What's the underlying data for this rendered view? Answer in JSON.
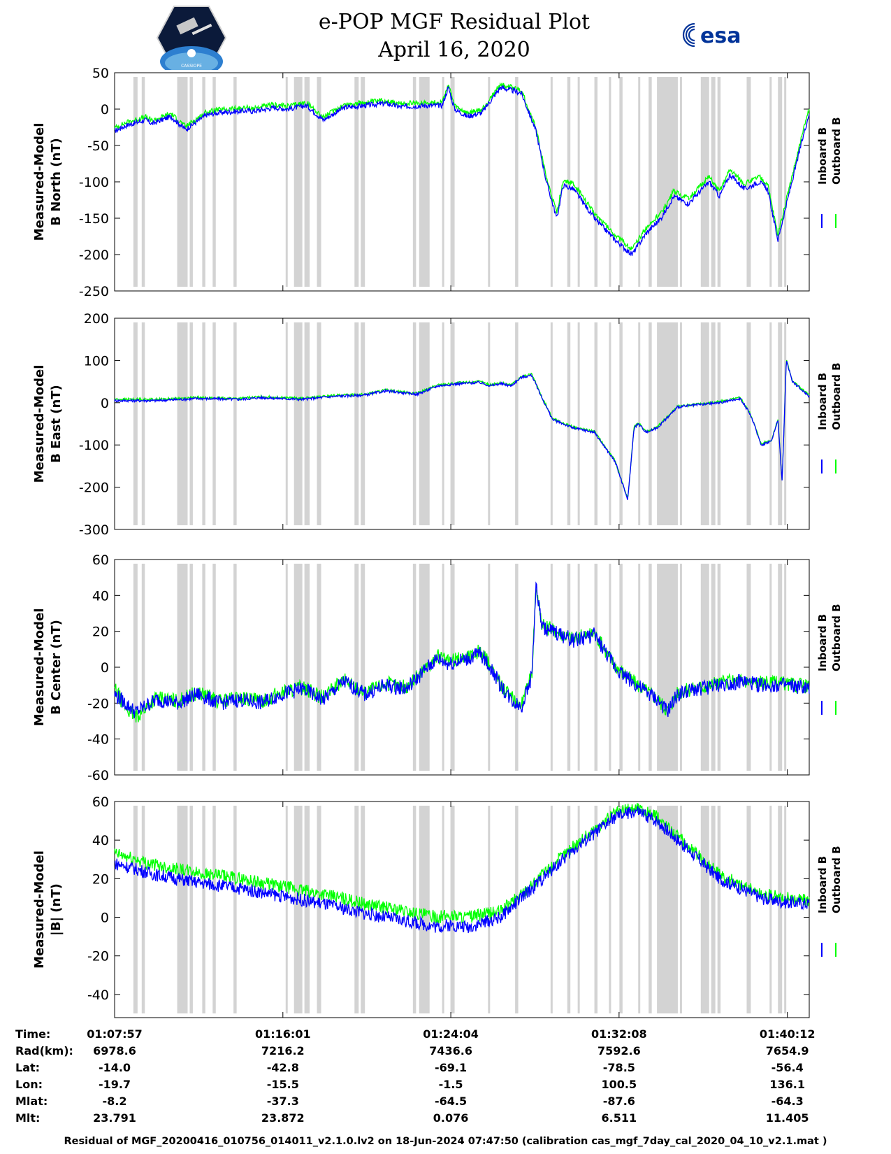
{
  "header": {
    "title_line1": "e-POP MGF Residual Plot",
    "title_line2": "April 16, 2020",
    "logo_left": "CASSIOPE",
    "logo_right": "esa"
  },
  "legend": {
    "inboard": "Inboard B",
    "outboard": "Outboard B",
    "inboard_color": "#0000ff",
    "outboard_color": "#00ff00"
  },
  "colors": {
    "gap_band": "#d3d3d3",
    "inboard": "#0000ff",
    "outboard": "#00ff00"
  },
  "chart_data": [
    {
      "type": "line",
      "ylabel_line1": "Measured-Model",
      "ylabel_line2": "B North (nT)",
      "ylim": [
        -250,
        50
      ],
      "yticks": [
        "50",
        "0",
        "-50",
        "-100",
        "-150",
        "-200",
        "-250"
      ],
      "x": [
        0,
        0.6,
        1.5,
        1.8,
        2.7,
        3.4,
        4.4,
        5.0,
        6.4,
        6.6,
        7.7,
        8.3,
        9.2,
        10.0,
        11.0,
        12.0,
        13.0,
        13.7,
        14.9,
        15.7,
        16.0,
        16.3,
        16.9,
        17.6,
        18.5,
        19.5,
        20.2,
        20.7,
        21.2,
        21.5,
        22.0,
        23.0,
        24.0,
        24.8,
        25.5,
        26.2,
        26.8,
        27.5,
        28.5,
        29.0,
        29.5,
        30.2,
        30.9,
        31.3,
        31.8,
        32.3,
        32.9,
        33.3
      ],
      "series": [
        {
          "name": "Inboard B",
          "values": [
            -30,
            -22,
            -15,
            -20,
            -10,
            -28,
            -8,
            -5,
            -2,
            -3,
            2,
            0,
            5,
            -15,
            2,
            5,
            8,
            3,
            5,
            5,
            30,
            0,
            -10,
            -5,
            30,
            22,
            -30,
            -100,
            -150,
            -105,
            -110,
            -150,
            -180,
            -200,
            -170,
            -150,
            -120,
            -130,
            -100,
            -120,
            -90,
            -110,
            -100,
            -110,
            -180,
            -120,
            -50,
            -5
          ]
        },
        {
          "name": "Outboard B",
          "values": [
            -26,
            -18,
            -11,
            -16,
            -6,
            -24,
            -4,
            -1,
            2,
            1,
            6,
            4,
            9,
            -11,
            6,
            9,
            12,
            7,
            9,
            9,
            34,
            4,
            -6,
            -1,
            34,
            26,
            -26,
            -95,
            -143,
            -98,
            -103,
            -143,
            -173,
            -193,
            -163,
            -143,
            -113,
            -123,
            -93,
            -113,
            -83,
            -103,
            -93,
            -103,
            -173,
            -113,
            -43,
            2
          ]
        }
      ]
    },
    {
      "type": "line",
      "ylabel_line1": "Measured-Model",
      "ylabel_line2": "B East (nT)",
      "ylim": [
        -300,
        200
      ],
      "yticks": [
        "200",
        "100",
        "0",
        "-100",
        "-200",
        "-300"
      ],
      "x": [
        0,
        2.0,
        4.0,
        6.0,
        7.0,
        9.0,
        10.5,
        12.0,
        13.0,
        14.5,
        15.5,
        16.5,
        17.5,
        18.0,
        18.5,
        19.0,
        19.5,
        20.0,
        20.5,
        21.0,
        21.5,
        22.0,
        23.0,
        24.0,
        24.6,
        24.9,
        25.1,
        25.5,
        26.0,
        27.0,
        28.0,
        29.0,
        30.0,
        30.5,
        31.0,
        31.5,
        31.8,
        32.0,
        32.2,
        32.5,
        33.3
      ],
      "series": [
        {
          "name": "Inboard B",
          "values": [
            5,
            5,
            10,
            8,
            12,
            8,
            15,
            18,
            28,
            20,
            40,
            45,
            48,
            40,
            45,
            40,
            60,
            65,
            10,
            -40,
            -50,
            -60,
            -70,
            -140,
            -230,
            -60,
            -50,
            -70,
            -60,
            -10,
            -5,
            0,
            10,
            -30,
            -100,
            -90,
            -40,
            -190,
            100,
            50,
            15
          ]
        },
        {
          "name": "Outboard B",
          "values": [
            8,
            8,
            12,
            10,
            14,
            10,
            17,
            20,
            30,
            22,
            42,
            47,
            50,
            42,
            47,
            42,
            62,
            67,
            12,
            -38,
            -48,
            -58,
            -68,
            -138,
            -228,
            -58,
            -48,
            -68,
            -58,
            -8,
            -3,
            2,
            12,
            -28,
            -98,
            -88,
            -38,
            -188,
            102,
            52,
            17
          ]
        }
      ]
    },
    {
      "type": "line",
      "ylabel_line1": "Measured-Model",
      "ylabel_line2": "B Center (nT)",
      "ylim": [
        -60,
        60
      ],
      "yticks": [
        "60",
        "40",
        "20",
        "0",
        "-20",
        "-40",
        "-60"
      ],
      "x": [
        0,
        0.5,
        1.0,
        2.0,
        3.0,
        4.0,
        5.0,
        6.0,
        7.0,
        8.0,
        9.0,
        10.0,
        11.0,
        12.0,
        13.0,
        14.0,
        15.0,
        15.5,
        16.0,
        17.0,
        17.5,
        18.0,
        18.5,
        19.0,
        19.5,
        20.0,
        20.2,
        20.5,
        21.0,
        22.0,
        23.0,
        24.0,
        25.0,
        26.0,
        26.5,
        27.0,
        28.0,
        29.0,
        30.0,
        31.0,
        32.0,
        33.3
      ],
      "series": [
        {
          "name": "Inboard B",
          "values": [
            -15,
            -20,
            -25,
            -18,
            -20,
            -15,
            -20,
            -18,
            -20,
            -15,
            -12,
            -18,
            -8,
            -15,
            -10,
            -12,
            0,
            5,
            2,
            5,
            8,
            0,
            -10,
            -18,
            -22,
            -5,
            45,
            22,
            20,
            15,
            18,
            0,
            -10,
            -18,
            -25,
            -15,
            -12,
            -10,
            -8,
            -10,
            -10,
            -12
          ]
        },
        {
          "name": "Outboard B",
          "values": [
            -12,
            -22,
            -28,
            -17,
            -19,
            -14,
            -19,
            -17,
            -19,
            -14,
            -11,
            -17,
            -7,
            -14,
            -9,
            -11,
            1,
            6,
            3,
            6,
            9,
            1,
            -9,
            -17,
            -21,
            -4,
            46,
            23,
            21,
            16,
            19,
            1,
            -9,
            -17,
            -24,
            -14,
            -11,
            -9,
            -7,
            -9,
            -9,
            -11
          ]
        }
      ]
    },
    {
      "type": "line",
      "ylabel_line1": "Measured-Model",
      "ylabel_line2": "|B| (nT)",
      "ylim": [
        -52,
        60
      ],
      "yticks": [
        "60",
        "40",
        "20",
        "0",
        "-20",
        "-40"
      ],
      "x": [
        0,
        2.0,
        4.0,
        6.0,
        8.0,
        10.0,
        12.0,
        14.0,
        15.5,
        16.0,
        17.0,
        18.5,
        20.0,
        22.0,
        24.0,
        25.0,
        26.0,
        27.0,
        28.0,
        29.0,
        30.0,
        31.0,
        32.0,
        33.3
      ],
      "series": [
        {
          "name": "Inboard B",
          "values": [
            28,
            22,
            18,
            15,
            11,
            7,
            2,
            -2,
            -5,
            -4,
            -5,
            0,
            15,
            35,
            52,
            55,
            50,
            40,
            30,
            20,
            15,
            10,
            8,
            7
          ]
        },
        {
          "name": "Outboard B",
          "values": [
            33,
            27,
            23,
            20,
            16,
            12,
            7,
            3,
            0,
            1,
            0,
            3,
            17,
            37,
            54,
            57,
            52,
            42,
            32,
            22,
            17,
            12,
            10,
            9
          ]
        }
      ]
    }
  ],
  "data_gaps_minutes": [
    [
      0.9,
      1.1
    ],
    [
      1.3,
      1.45
    ],
    [
      3.0,
      3.5
    ],
    [
      3.6,
      3.75
    ],
    [
      4.2,
      4.35
    ],
    [
      4.7,
      4.85
    ],
    [
      5.7,
      5.85
    ],
    [
      8.2,
      8.3
    ],
    [
      8.6,
      9.0
    ],
    [
      9.1,
      9.35
    ],
    [
      9.7,
      9.9
    ],
    [
      11.5,
      11.7
    ],
    [
      11.8,
      12.0
    ],
    [
      14.3,
      14.45
    ],
    [
      14.6,
      15.1
    ],
    [
      15.7,
      15.8
    ],
    [
      16.1,
      16.3
    ],
    [
      17.9,
      18.0
    ],
    [
      19.2,
      19.35
    ],
    [
      20.9,
      21.0
    ],
    [
      21.7,
      21.85
    ],
    [
      22.2,
      22.3
    ],
    [
      23.0,
      23.15
    ],
    [
      23.7,
      23.8
    ],
    [
      24.2,
      24.35
    ],
    [
      25.1,
      25.2
    ],
    [
      25.6,
      25.75
    ],
    [
      26.0,
      27.0
    ],
    [
      27.1,
      27.2
    ],
    [
      28.1,
      28.5
    ],
    [
      28.6,
      28.8
    ],
    [
      28.9,
      29.05
    ],
    [
      30.3,
      30.5
    ],
    [
      31.4,
      31.5
    ],
    [
      31.8,
      32.0
    ],
    [
      32.1,
      32.2
    ]
  ],
  "info": {
    "labels": [
      "Time:",
      "Rad(km):",
      "Lat:",
      "Lon:",
      "Mlat:",
      "Mlt:"
    ],
    "columns": [
      [
        "01:07:57",
        "6978.6",
        "-14.0",
        "-19.7",
        "-8.2",
        "23.791"
      ],
      [
        "01:16:01",
        "7216.2",
        "-42.8",
        "-15.5",
        "-37.3",
        "23.872"
      ],
      [
        "01:24:04",
        "7436.6",
        "-69.1",
        "-1.5",
        "-64.5",
        "0.076"
      ],
      [
        "01:32:08",
        "7592.6",
        "-78.5",
        "100.5",
        "-87.6",
        "6.511"
      ],
      [
        "01:40:12",
        "7654.9",
        "-56.4",
        "136.1",
        "-64.3",
        "11.405"
      ]
    ],
    "x_minutes": [
      0,
      8.067,
      16.117,
      24.183,
      32.25
    ]
  },
  "footer": "Residual of MGF_20200416_010756_014011_v2.1.0.lv2 on 18-Jun-2024 07:47:50 (calibration cas_mgf_7day_cal_2020_04_10_v2.1.mat )"
}
